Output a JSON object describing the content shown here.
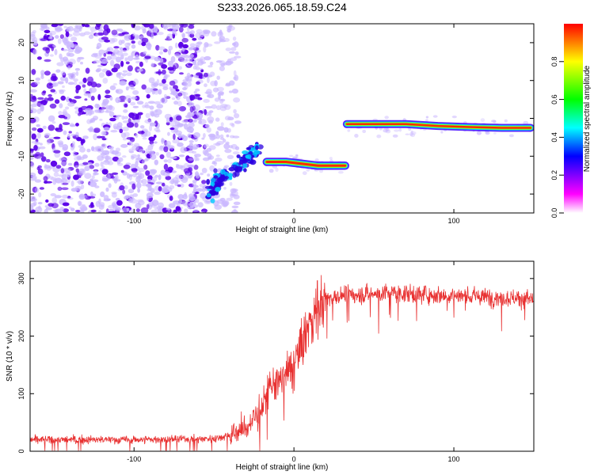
{
  "title": "S233.2026.065.18.59.C24",
  "colors": {
    "snr_line": "#e83030",
    "colorbar": [
      "#ffffff",
      "#ff00ff",
      "#0000ff",
      "#00ffff",
      "#00ff00",
      "#ffff00",
      "#ff0000"
    ],
    "track_core": "#ff2a00",
    "track_edge": "#00d8ff",
    "noise_dark": "#5a00e8",
    "noise_light": "#c9b6ff"
  },
  "chart_data": [
    {
      "type": "heatmap",
      "name": "spectrogram",
      "xlabel": "Height of straight line (km)",
      "ylabel": "Frequency (Hz)",
      "xlim": [
        -165,
        150
      ],
      "ylim": [
        -25,
        25
      ],
      "xticks": [
        -100,
        0,
        100
      ],
      "yticks": [
        -20,
        -10,
        0,
        10,
        20
      ],
      "colorbar": {
        "label": "Normalized spectral amplitude",
        "range": [
          0.0,
          1.0
        ],
        "ticks": [
          0.0,
          0.2,
          0.4,
          0.6,
          0.8
        ]
      },
      "noise_region": {
        "x": [
          -165,
          -45
        ],
        "y": [
          -25,
          25
        ]
      },
      "tracks": [
        {
          "name": "rising-segment",
          "x": [
            -55,
            -48,
            -40,
            -33,
            -28,
            -22
          ],
          "y": [
            -20,
            -17,
            -14,
            -12,
            -10,
            -8
          ]
        },
        {
          "name": "flat-segment-low",
          "x": [
            -17,
            -5,
            5,
            15,
            25,
            32
          ],
          "y": [
            -11.5,
            -11.5,
            -12,
            -12.5,
            -12.5,
            -12.5
          ]
        },
        {
          "name": "flat-segment-high",
          "x": [
            33,
            50,
            70,
            90,
            110,
            130,
            148
          ],
          "y": [
            -1.5,
            -1.5,
            -1.5,
            -2,
            -2.3,
            -2.5,
            -2.5
          ]
        }
      ]
    },
    {
      "type": "line",
      "name": "snr",
      "xlabel": "Height of straight line (km)",
      "ylabel": "SNR (10 * v/v)",
      "xlim": [
        -165,
        150
      ],
      "ylim": [
        0,
        330
      ],
      "xticks": [
        -100,
        0,
        100
      ],
      "yticks": [
        0,
        100,
        200,
        300
      ],
      "series": [
        {
          "name": "snr",
          "x": [
            -165,
            -100,
            -50,
            -40,
            -30,
            -20,
            -15,
            -10,
            -5,
            0,
            5,
            10,
            15,
            20,
            30,
            40,
            60,
            100,
            150
          ],
          "y": [
            20,
            20,
            22,
            28,
            40,
            75,
            110,
            120,
            130,
            150,
            185,
            225,
            250,
            265,
            270,
            272,
            275,
            270,
            265
          ]
        }
      ]
    }
  ]
}
